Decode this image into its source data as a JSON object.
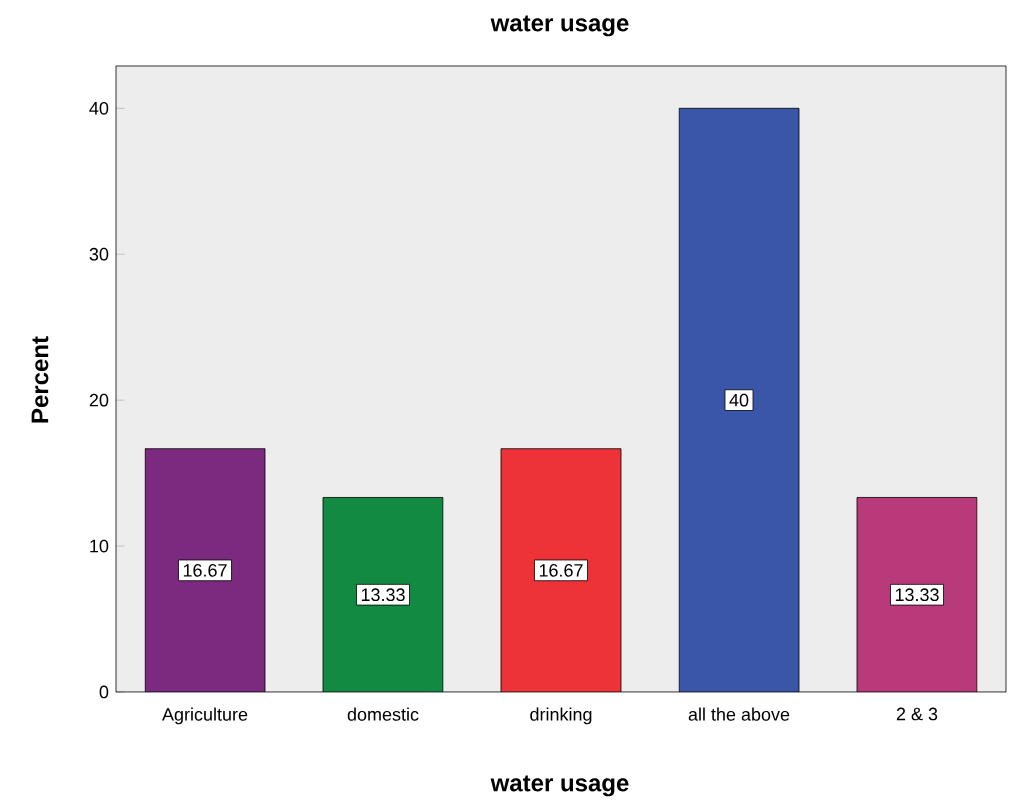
{
  "chart_data": {
    "type": "bar",
    "title": "water usage",
    "xlabel": "water usage",
    "ylabel": "Percent",
    "categories": [
      "Agriculture",
      "domestic",
      "drinking",
      "all the above",
      "2 & 3"
    ],
    "values": [
      16.67,
      13.33,
      16.67,
      40,
      13.33
    ],
    "colors": [
      "#7b2a7f",
      "#138a42",
      "#ee3338",
      "#3a56a8",
      "#b93a7b"
    ],
    "ylim": [
      0,
      42.9
    ],
    "yticks": [
      0,
      10,
      20,
      30,
      40
    ],
    "grid": false,
    "data_labels": true
  }
}
